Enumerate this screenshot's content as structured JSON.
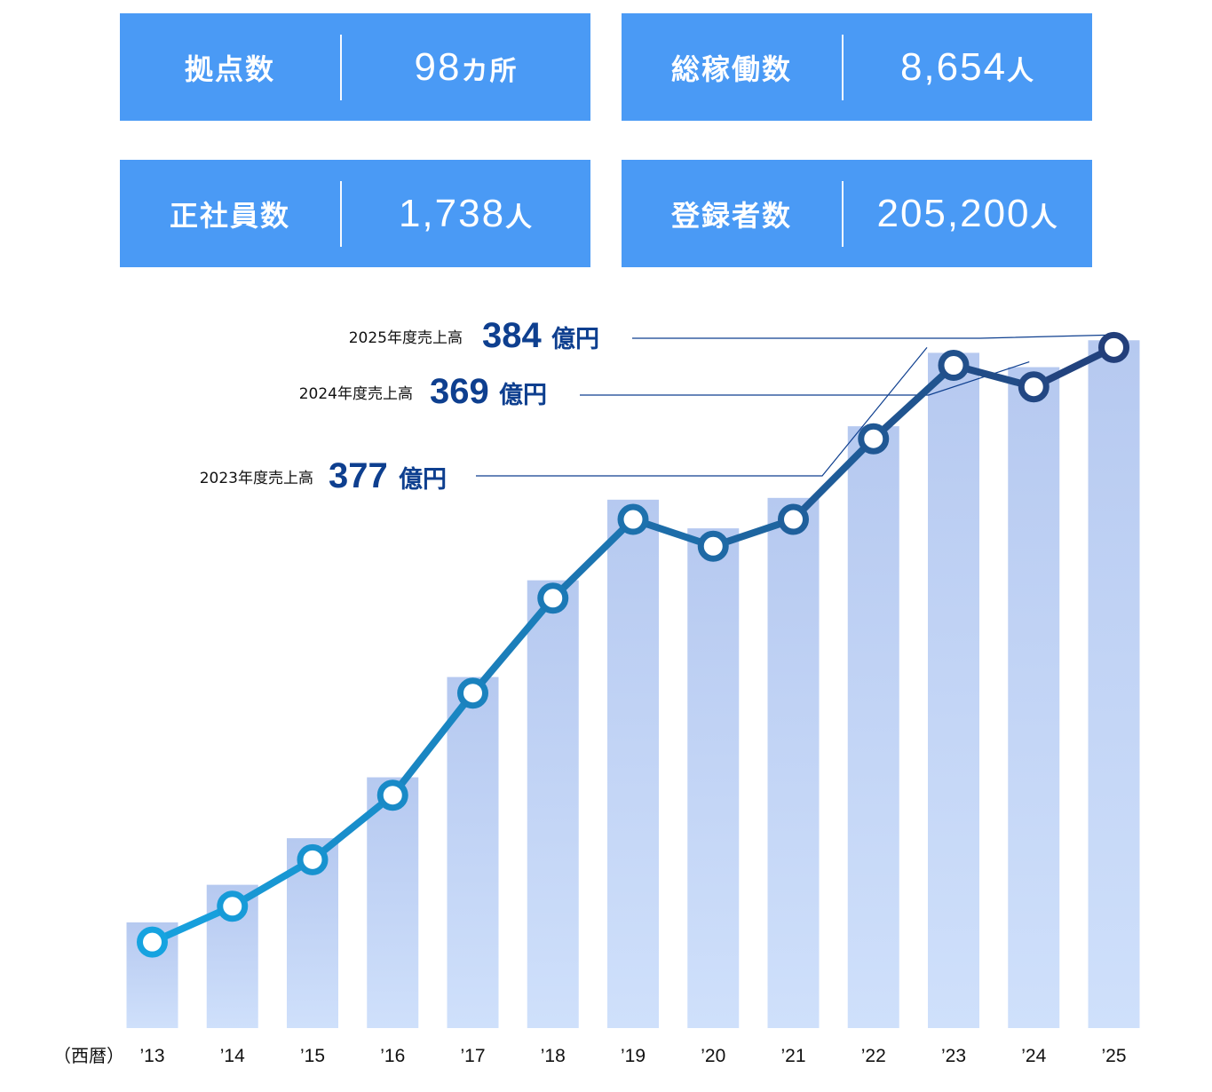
{
  "stats": [
    {
      "label": "拠点数",
      "value": "98",
      "unit": "カ所"
    },
    {
      "label": "総稼働数",
      "value": "8,654",
      "unit": "人"
    },
    {
      "label": "正社員数",
      "value": "1,738",
      "unit": "人"
    },
    {
      "label": "登録者数",
      "value": "205,200",
      "unit": "人"
    }
  ],
  "colors": {
    "stat_box": "#4a9af5",
    "bar_top": "#b6c9f0",
    "bar_bottom": "#cfe0fb",
    "line_start": "#16a3e0",
    "line_end": "#233f7a",
    "callout_text": "#0e3f8f"
  },
  "chart_data": {
    "type": "bar",
    "x_prefix": "（西暦）",
    "categories": [
      "’13",
      "’14",
      "’15",
      "’16",
      "’17",
      "’18",
      "’19",
      "’20",
      "’21",
      "’22",
      "’23",
      "’24",
      "’25"
    ],
    "unit": "億円",
    "ylim": [
      0,
      400
    ],
    "grid": false,
    "series": [
      {
        "type": "bar",
        "values": [
          59,
          80,
          106,
          140,
          196,
          250,
          295,
          279,
          296,
          336,
          377,
          369,
          384
        ]
      },
      {
        "type": "line",
        "values": [
          48,
          68,
          94,
          130,
          187,
          240,
          284,
          269,
          284,
          329,
          370,
          358,
          380
        ]
      }
    ],
    "annotations": [
      {
        "label": "2025年度売上高",
        "value": "384",
        "unit": "億円",
        "category": "’25"
      },
      {
        "label": "2024年度売上高",
        "value": "369",
        "unit": "億円",
        "category": "’24"
      },
      {
        "label": "2023年度売上高",
        "value": "377",
        "unit": "億円",
        "category": "’23"
      }
    ]
  }
}
